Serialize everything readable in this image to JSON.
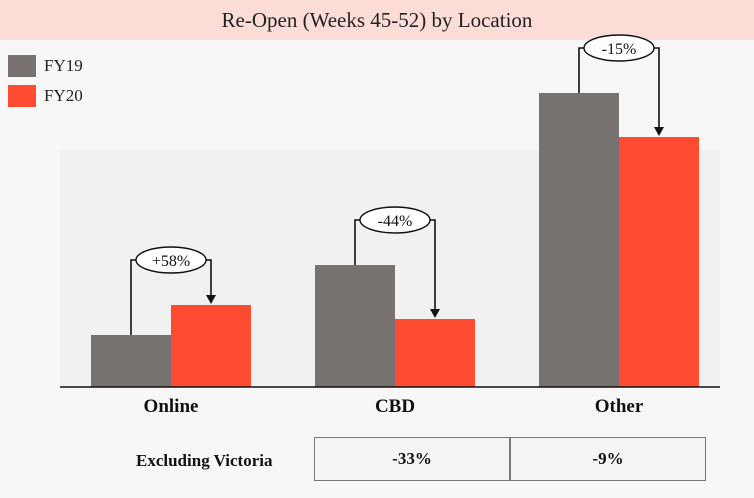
{
  "title": "Re-Open (Weeks 45-52) by Location",
  "colors": {
    "fy19": "#787371",
    "fy20": "#ff4b32",
    "title_bg": "#fbdcd6"
  },
  "chart_data": {
    "type": "bar",
    "title": "Re-Open (Weeks 45-52) by Location",
    "categories": [
      "Online",
      "CBD",
      "Other"
    ],
    "series": [
      {
        "name": "FY19",
        "values": [
          52,
          122,
          294
        ]
      },
      {
        "name": "FY20",
        "values": [
          82,
          68,
          250
        ]
      }
    ],
    "annotations": [
      "+58%",
      "-44%",
      "-15%"
    ],
    "ylim": [
      0,
      310
    ],
    "grid": false,
    "legend": "top-left"
  },
  "footer": {
    "label": "Excluding Victoria",
    "values": [
      "-33%",
      "-9%"
    ]
  }
}
